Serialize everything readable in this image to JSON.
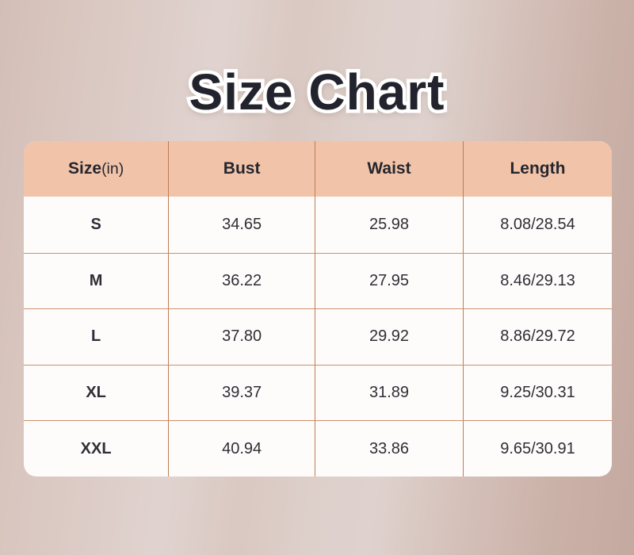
{
  "title": "Size Chart",
  "table": {
    "header": {
      "size": "Size",
      "size_unit": "(in)",
      "bust": "Bust",
      "waist": "Waist",
      "length": "Length"
    },
    "rows": [
      {
        "size": "S",
        "bust": "34.65",
        "waist": "25.98",
        "length": "8.08/28.54"
      },
      {
        "size": "M",
        "bust": "36.22",
        "waist": "27.95",
        "length": "8.46/29.13"
      },
      {
        "size": "L",
        "bust": "37.80",
        "waist": "29.92",
        "length": "8.86/29.72"
      },
      {
        "size": "XL",
        "bust": "39.37",
        "waist": "31.89",
        "length": "9.25/30.31"
      },
      {
        "size": "XXL",
        "bust": "40.94",
        "waist": "33.86",
        "length": "9.65/30.91"
      }
    ]
  },
  "colors": {
    "title_text": "#23232d",
    "title_outline": "#ffffff",
    "header_bg": "#f1c4aa",
    "body_bg": "#fefcfb",
    "grid_line_vertical": "#bf7c52",
    "grid_line_horizontal": "#cc906c",
    "background_light": "#e0d3cf",
    "background_dark": "#c4a9a0"
  },
  "chart_data": {
    "type": "table",
    "title": "Size Chart",
    "unit": "in",
    "columns": [
      "Size(in)",
      "Bust",
      "Waist",
      "Length"
    ],
    "rows": [
      [
        "S",
        34.65,
        25.98,
        "8.08/28.54"
      ],
      [
        "M",
        36.22,
        27.95,
        "8.46/29.13"
      ],
      [
        "L",
        37.8,
        29.92,
        "8.86/29.72"
      ],
      [
        "XL",
        39.37,
        31.89,
        "9.25/30.31"
      ],
      [
        "XXL",
        40.94,
        33.86,
        "9.65/30.91"
      ]
    ]
  }
}
